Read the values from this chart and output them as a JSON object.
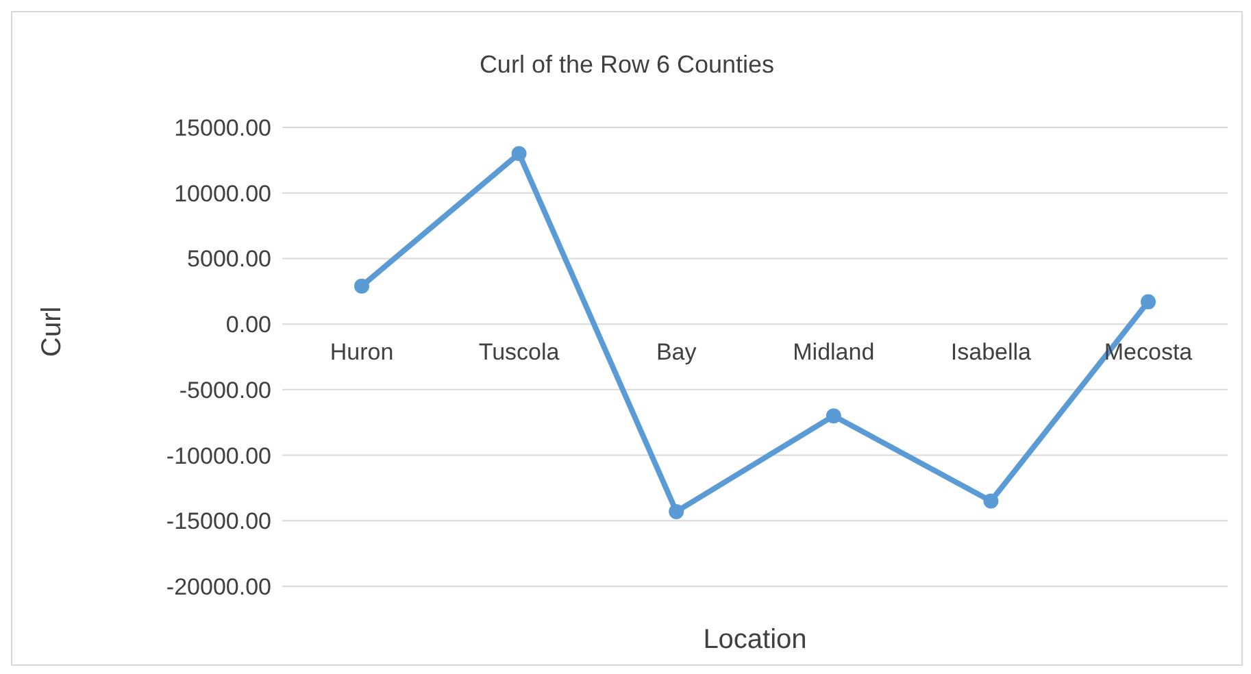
{
  "chart_data": {
    "type": "line",
    "title": "Curl of the Row 6 Counties",
    "xlabel": "Location",
    "ylabel": "Curl",
    "categories": [
      "Huron",
      "Tuscola",
      "Bay",
      "Midland",
      "Isabella",
      "Mecosta"
    ],
    "series": [
      {
        "color": "#5b9bd5",
        "values": [
          2900,
          13000,
          -14300,
          -7000,
          -13500,
          1700
        ]
      }
    ],
    "ylim": [
      -20000,
      15000
    ],
    "yticks": [
      {
        "value": -20000,
        "label": "-20000.00"
      },
      {
        "value": -15000,
        "label": "-15000.00"
      },
      {
        "value": -10000,
        "label": "-10000.00"
      },
      {
        "value": -5000,
        "label": "-5000.00"
      },
      {
        "value": 0,
        "label": "0.00"
      },
      {
        "value": 5000,
        "label": "5000.00"
      },
      {
        "value": 10000,
        "label": "10000.00"
      },
      {
        "value": 15000,
        "label": "15000.00"
      }
    ],
    "grid": "y",
    "legend": false,
    "marker": "circle",
    "line_style": "solid"
  }
}
